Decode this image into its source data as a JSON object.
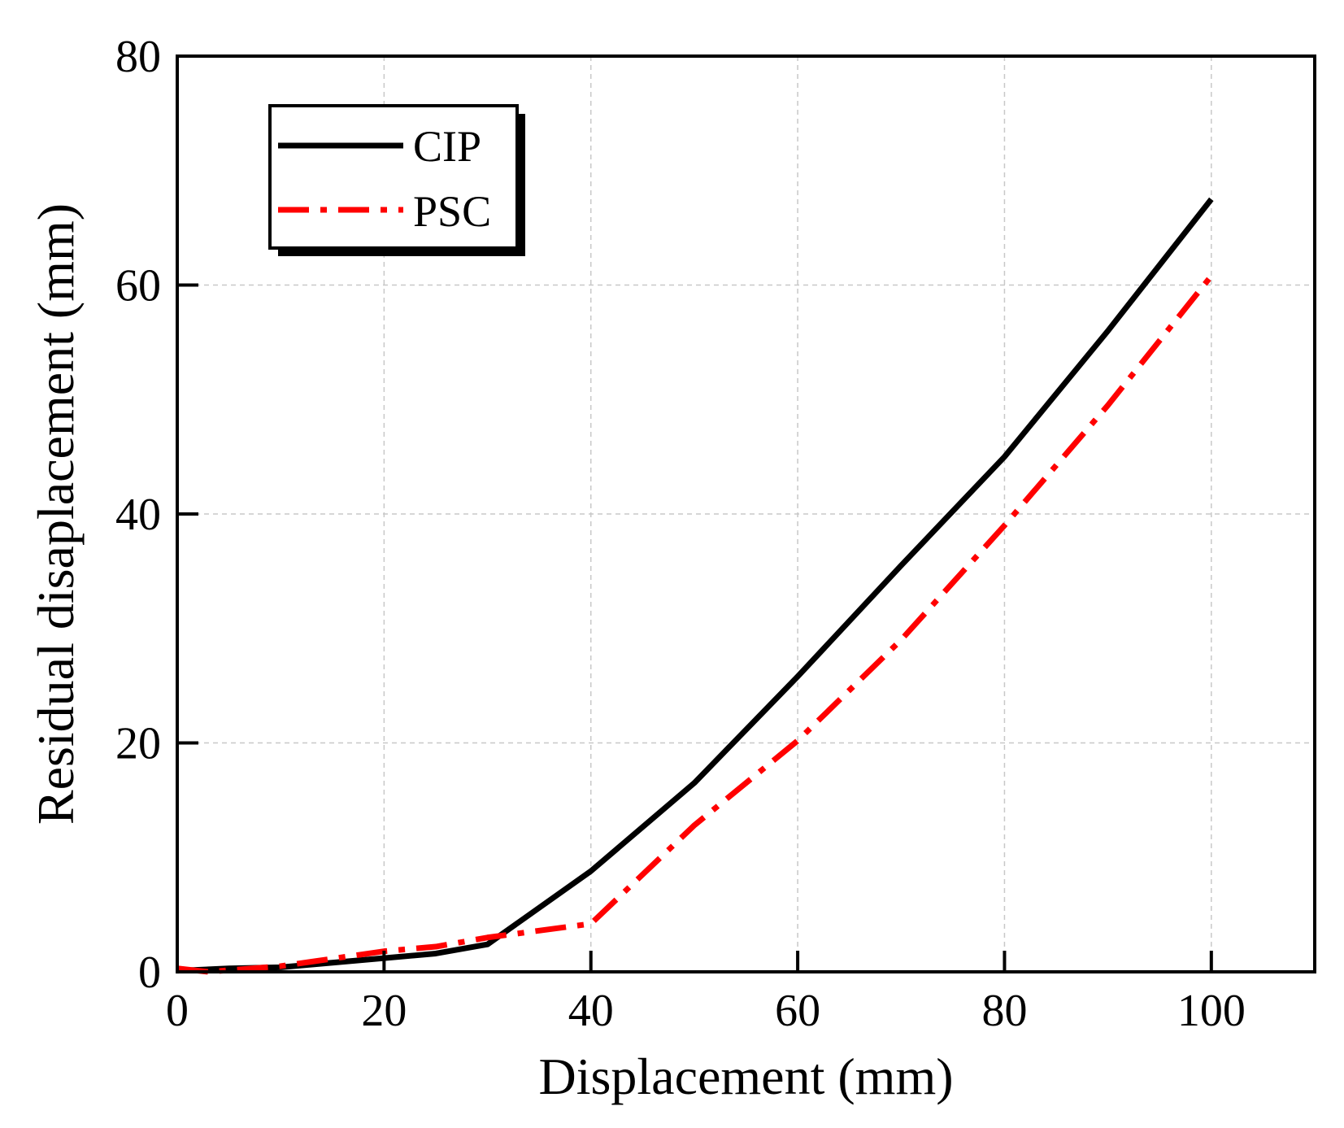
{
  "chart_data": {
    "type": "line",
    "title": "",
    "xlabel": "Displacement (mm)",
    "ylabel": "Residual disaplacement (mm)",
    "xlim": [
      0,
      110
    ],
    "ylim": [
      0,
      80
    ],
    "xticks": [
      0,
      20,
      40,
      60,
      80,
      100
    ],
    "yticks": [
      0,
      20,
      40,
      60,
      80
    ],
    "xtick_labels": [
      "0",
      "20",
      "40",
      "60",
      "80",
      "100"
    ],
    "ytick_labels": [
      "0",
      "20",
      "40",
      "60",
      "80"
    ],
    "grid": true,
    "legend": {
      "position": "top-left",
      "entries": [
        "CIP",
        "PSC"
      ]
    },
    "series": [
      {
        "name": "CIP",
        "color": "#000000",
        "style": "solid",
        "x": [
          0,
          5,
          10,
          20,
          25,
          30,
          40,
          50,
          60,
          70,
          80,
          90,
          100
        ],
        "y": [
          0.1,
          0.3,
          0.4,
          1.2,
          1.6,
          2.4,
          8.8,
          16.5,
          25.8,
          35.5,
          45.0,
          56.0,
          67.5
        ]
      },
      {
        "name": "PSC",
        "color": "#ff0000",
        "style": "dash-dot",
        "x": [
          0,
          3,
          10,
          20,
          25,
          30,
          40,
          50,
          60,
          70,
          80,
          90,
          100
        ],
        "y": [
          0.3,
          0.0,
          0.5,
          1.8,
          2.2,
          3.0,
          4.2,
          12.8,
          20.2,
          29.0,
          39.0,
          49.5,
          60.8
        ]
      }
    ]
  }
}
